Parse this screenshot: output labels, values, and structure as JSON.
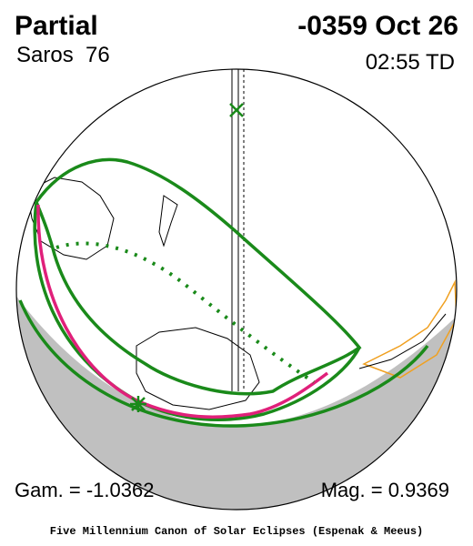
{
  "header": {
    "title": "Partial",
    "date": "-0359 Oct 26",
    "saros": "Saros  76",
    "time": "02:55 TD"
  },
  "footer": {
    "gamma": "Gam. = -1.0362",
    "magnitude": "Mag. = 0.9369",
    "credit": "Five Millennium Canon of Solar Eclipses (Espenak & Meeus)"
  }
}
